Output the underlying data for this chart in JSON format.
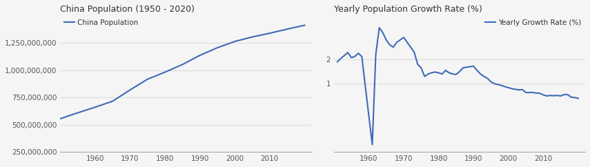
{
  "chart1": {
    "title": "China Population (1950 - 2020)",
    "legend_label": "China Population",
    "line_color": "#3d6bb5",
    "years": [
      1950,
      1955,
      1960,
      1965,
      1970,
      1975,
      1980,
      1985,
      1990,
      1995,
      2000,
      2005,
      2010,
      2015,
      2020
    ],
    "population": [
      554419000,
      608655000,
      660330000,
      715185000,
      818315000,
      916395000,
      981235000,
      1051040000,
      1135185000,
      1204855000,
      1262645000,
      1303720000,
      1337705000,
      1375428000,
      1411100000
    ],
    "yticks": [
      250000000,
      500000000,
      750000000,
      1000000000,
      1250000000
    ],
    "xticks": [
      1960,
      1970,
      1980,
      1990,
      2000,
      2010
    ],
    "ylim": [
      400000000,
      1500000000
    ],
    "xlim": [
      1950,
      2022
    ]
  },
  "chart2": {
    "title": "Yearly Population Growth Rate (%)",
    "legend_label": "Yearly Growth Rate (%)",
    "line_color": "#3d6bb5",
    "years": [
      1951,
      1952,
      1953,
      1954,
      1955,
      1956,
      1957,
      1958,
      1959,
      1960,
      1961,
      1962,
      1963,
      1964,
      1965,
      1966,
      1967,
      1968,
      1969,
      1970,
      1971,
      1972,
      1973,
      1974,
      1975,
      1976,
      1977,
      1978,
      1979,
      1980,
      1981,
      1982,
      1983,
      1984,
      1985,
      1986,
      1987,
      1988,
      1989,
      1990,
      1991,
      1992,
      1993,
      1994,
      1995,
      1996,
      1997,
      1998,
      1999,
      2000,
      2001,
      2002,
      2003,
      2004,
      2005,
      2006,
      2007,
      2008,
      2009,
      2010,
      2011,
      2012,
      2013,
      2014,
      2015,
      2016,
      2017,
      2018,
      2019,
      2020
    ],
    "growth_rate": [
      1.9,
      2.04,
      2.16,
      2.28,
      2.07,
      2.12,
      2.25,
      2.12,
      0.9,
      -0.3,
      -1.5,
      2.2,
      3.3,
      3.1,
      2.8,
      2.6,
      2.5,
      2.7,
      2.8,
      2.9,
      2.7,
      2.5,
      2.3,
      1.8,
      1.65,
      1.3,
      1.4,
      1.45,
      1.48,
      1.45,
      1.4,
      1.55,
      1.45,
      1.4,
      1.38,
      1.5,
      1.65,
      1.68,
      1.7,
      1.72,
      1.55,
      1.4,
      1.3,
      1.22,
      1.08,
      1.0,
      0.97,
      0.93,
      0.88,
      0.84,
      0.8,
      0.77,
      0.75,
      0.76,
      0.64,
      0.64,
      0.64,
      0.62,
      0.61,
      0.54,
      0.5,
      0.52,
      0.51,
      0.52,
      0.5,
      0.56,
      0.55,
      0.45,
      0.43,
      0.4
    ],
    "yticks": [
      1,
      2
    ],
    "xticks": [
      1960,
      1970,
      1980,
      1990,
      2000,
      2010
    ],
    "ylim": [
      -1.8,
      3.8
    ],
    "xlim": [
      1950,
      2022
    ]
  },
  "bg_color": "#f5f5f5",
  "plot_bg_color": "#ffffff",
  "grid_color": "#dddddd",
  "title_fontsize": 9,
  "tick_fontsize": 7.5,
  "legend_fontsize": 7.5
}
